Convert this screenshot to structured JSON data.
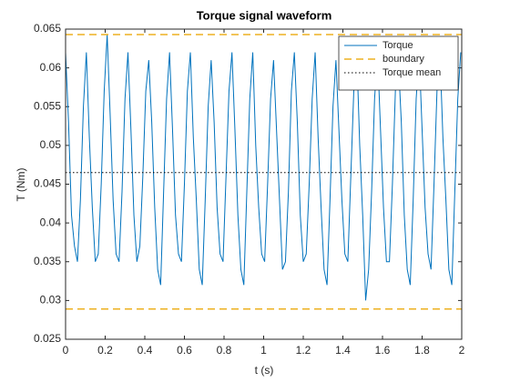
{
  "chart_data": {
    "type": "line",
    "title": "Torque signal waveform",
    "xlabel": "t (s)",
    "ylabel": "T (Nm)",
    "x": [
      0,
      0.015,
      0.03,
      0.045,
      0.06,
      0.075,
      0.09,
      0.105,
      0.12,
      0.135,
      0.15,
      0.165,
      0.18,
      0.195,
      0.21,
      0.225,
      0.24,
      0.255,
      0.27,
      0.285,
      0.3,
      0.315,
      0.33,
      0.345,
      0.36,
      0.375,
      0.39,
      0.405,
      0.42,
      0.435,
      0.45,
      0.465,
      0.48,
      0.495,
      0.51,
      0.525,
      0.54,
      0.555,
      0.57,
      0.585,
      0.6,
      0.615,
      0.63,
      0.645,
      0.66,
      0.675,
      0.69,
      0.705,
      0.72,
      0.735,
      0.75,
      0.765,
      0.78,
      0.795,
      0.81,
      0.825,
      0.84,
      0.855,
      0.87,
      0.885,
      0.9,
      0.915,
      0.93,
      0.945,
      0.96,
      0.975,
      0.99,
      1.005,
      1.02,
      1.035,
      1.05,
      1.065,
      1.08,
      1.095,
      1.11,
      1.125,
      1.14,
      1.155,
      1.17,
      1.185,
      1.2,
      1.215,
      1.23,
      1.245,
      1.26,
      1.275,
      1.29,
      1.305,
      1.32,
      1.335,
      1.35,
      1.365,
      1.38,
      1.395,
      1.41,
      1.425,
      1.44,
      1.455,
      1.47,
      1.485,
      1.5,
      1.515,
      1.53,
      1.545,
      1.56,
      1.575,
      1.59,
      1.605,
      1.62,
      1.635,
      1.65,
      1.665,
      1.68,
      1.695,
      1.71,
      1.725,
      1.74,
      1.755,
      1.77,
      1.785,
      1.8,
      1.815,
      1.83,
      1.845,
      1.86,
      1.875,
      1.89,
      1.905,
      1.92,
      1.935,
      1.95,
      1.965,
      1.98,
      1.995
    ],
    "series": [
      {
        "name": "Torque",
        "color": "#0072bd",
        "style": "solid",
        "values": [
          0.062,
          0.053,
          0.041,
          0.037,
          0.035,
          0.043,
          0.055,
          0.062,
          0.051,
          0.042,
          0.035,
          0.036,
          0.045,
          0.057,
          0.0643,
          0.054,
          0.043,
          0.036,
          0.035,
          0.044,
          0.056,
          0.062,
          0.052,
          0.041,
          0.035,
          0.037,
          0.046,
          0.057,
          0.061,
          0.053,
          0.042,
          0.034,
          0.032,
          0.044,
          0.056,
          0.062,
          0.052,
          0.041,
          0.036,
          0.035,
          0.045,
          0.057,
          0.062,
          0.051,
          0.043,
          0.034,
          0.032,
          0.043,
          0.055,
          0.061,
          0.053,
          0.042,
          0.036,
          0.035,
          0.046,
          0.057,
          0.062,
          0.052,
          0.041,
          0.034,
          0.032,
          0.044,
          0.056,
          0.062,
          0.05,
          0.042,
          0.036,
          0.035,
          0.045,
          0.056,
          0.061,
          0.052,
          0.043,
          0.034,
          0.035,
          0.044,
          0.057,
          0.062,
          0.053,
          0.041,
          0.035,
          0.036,
          0.045,
          0.056,
          0.062,
          0.051,
          0.042,
          0.034,
          0.032,
          0.043,
          0.055,
          0.061,
          0.052,
          0.043,
          0.036,
          0.035,
          0.046,
          0.057,
          0.062,
          0.05,
          0.041,
          0.03,
          0.034,
          0.044,
          0.056,
          0.062,
          0.052,
          0.042,
          0.035,
          0.035,
          0.045,
          0.057,
          0.061,
          0.053,
          0.041,
          0.034,
          0.032,
          0.043,
          0.056,
          0.062,
          0.052,
          0.042,
          0.036,
          0.034,
          0.045,
          0.057,
          0.062,
          0.051,
          0.043,
          0.034,
          0.032,
          0.044,
          0.056,
          0.062
        ]
      },
      {
        "name": "boundary",
        "color": "#edb120",
        "style": "dashed",
        "hlines": [
          0.0643,
          0.0289
        ]
      },
      {
        "name": "Torque mean",
        "color": "#000000",
        "style": "dotted",
        "hlines": [
          0.0465
        ]
      }
    ],
    "xlim": [
      0,
      2
    ],
    "xticks": [
      0,
      0.2,
      0.4,
      0.6,
      0.8,
      1,
      1.2,
      1.4,
      1.6,
      1.8,
      2
    ],
    "ylim": [
      0.025,
      0.065
    ],
    "yticks": [
      0.025,
      0.03,
      0.035,
      0.04,
      0.045,
      0.05,
      0.055,
      0.06,
      0.065
    ],
    "grid": false,
    "legend": "northeast"
  }
}
